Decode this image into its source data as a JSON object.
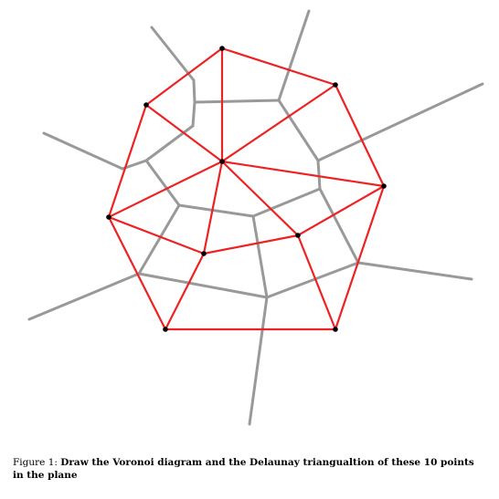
{
  "caption": {
    "prefix": "Figure 1: ",
    "text": "Draw the Voronoi diagram and the Delaunay triangualtion of these 10 points in the plane"
  },
  "colors": {
    "voronoi": "#999999",
    "delaunay": "#ee2222",
    "points": "#000000"
  }
}
